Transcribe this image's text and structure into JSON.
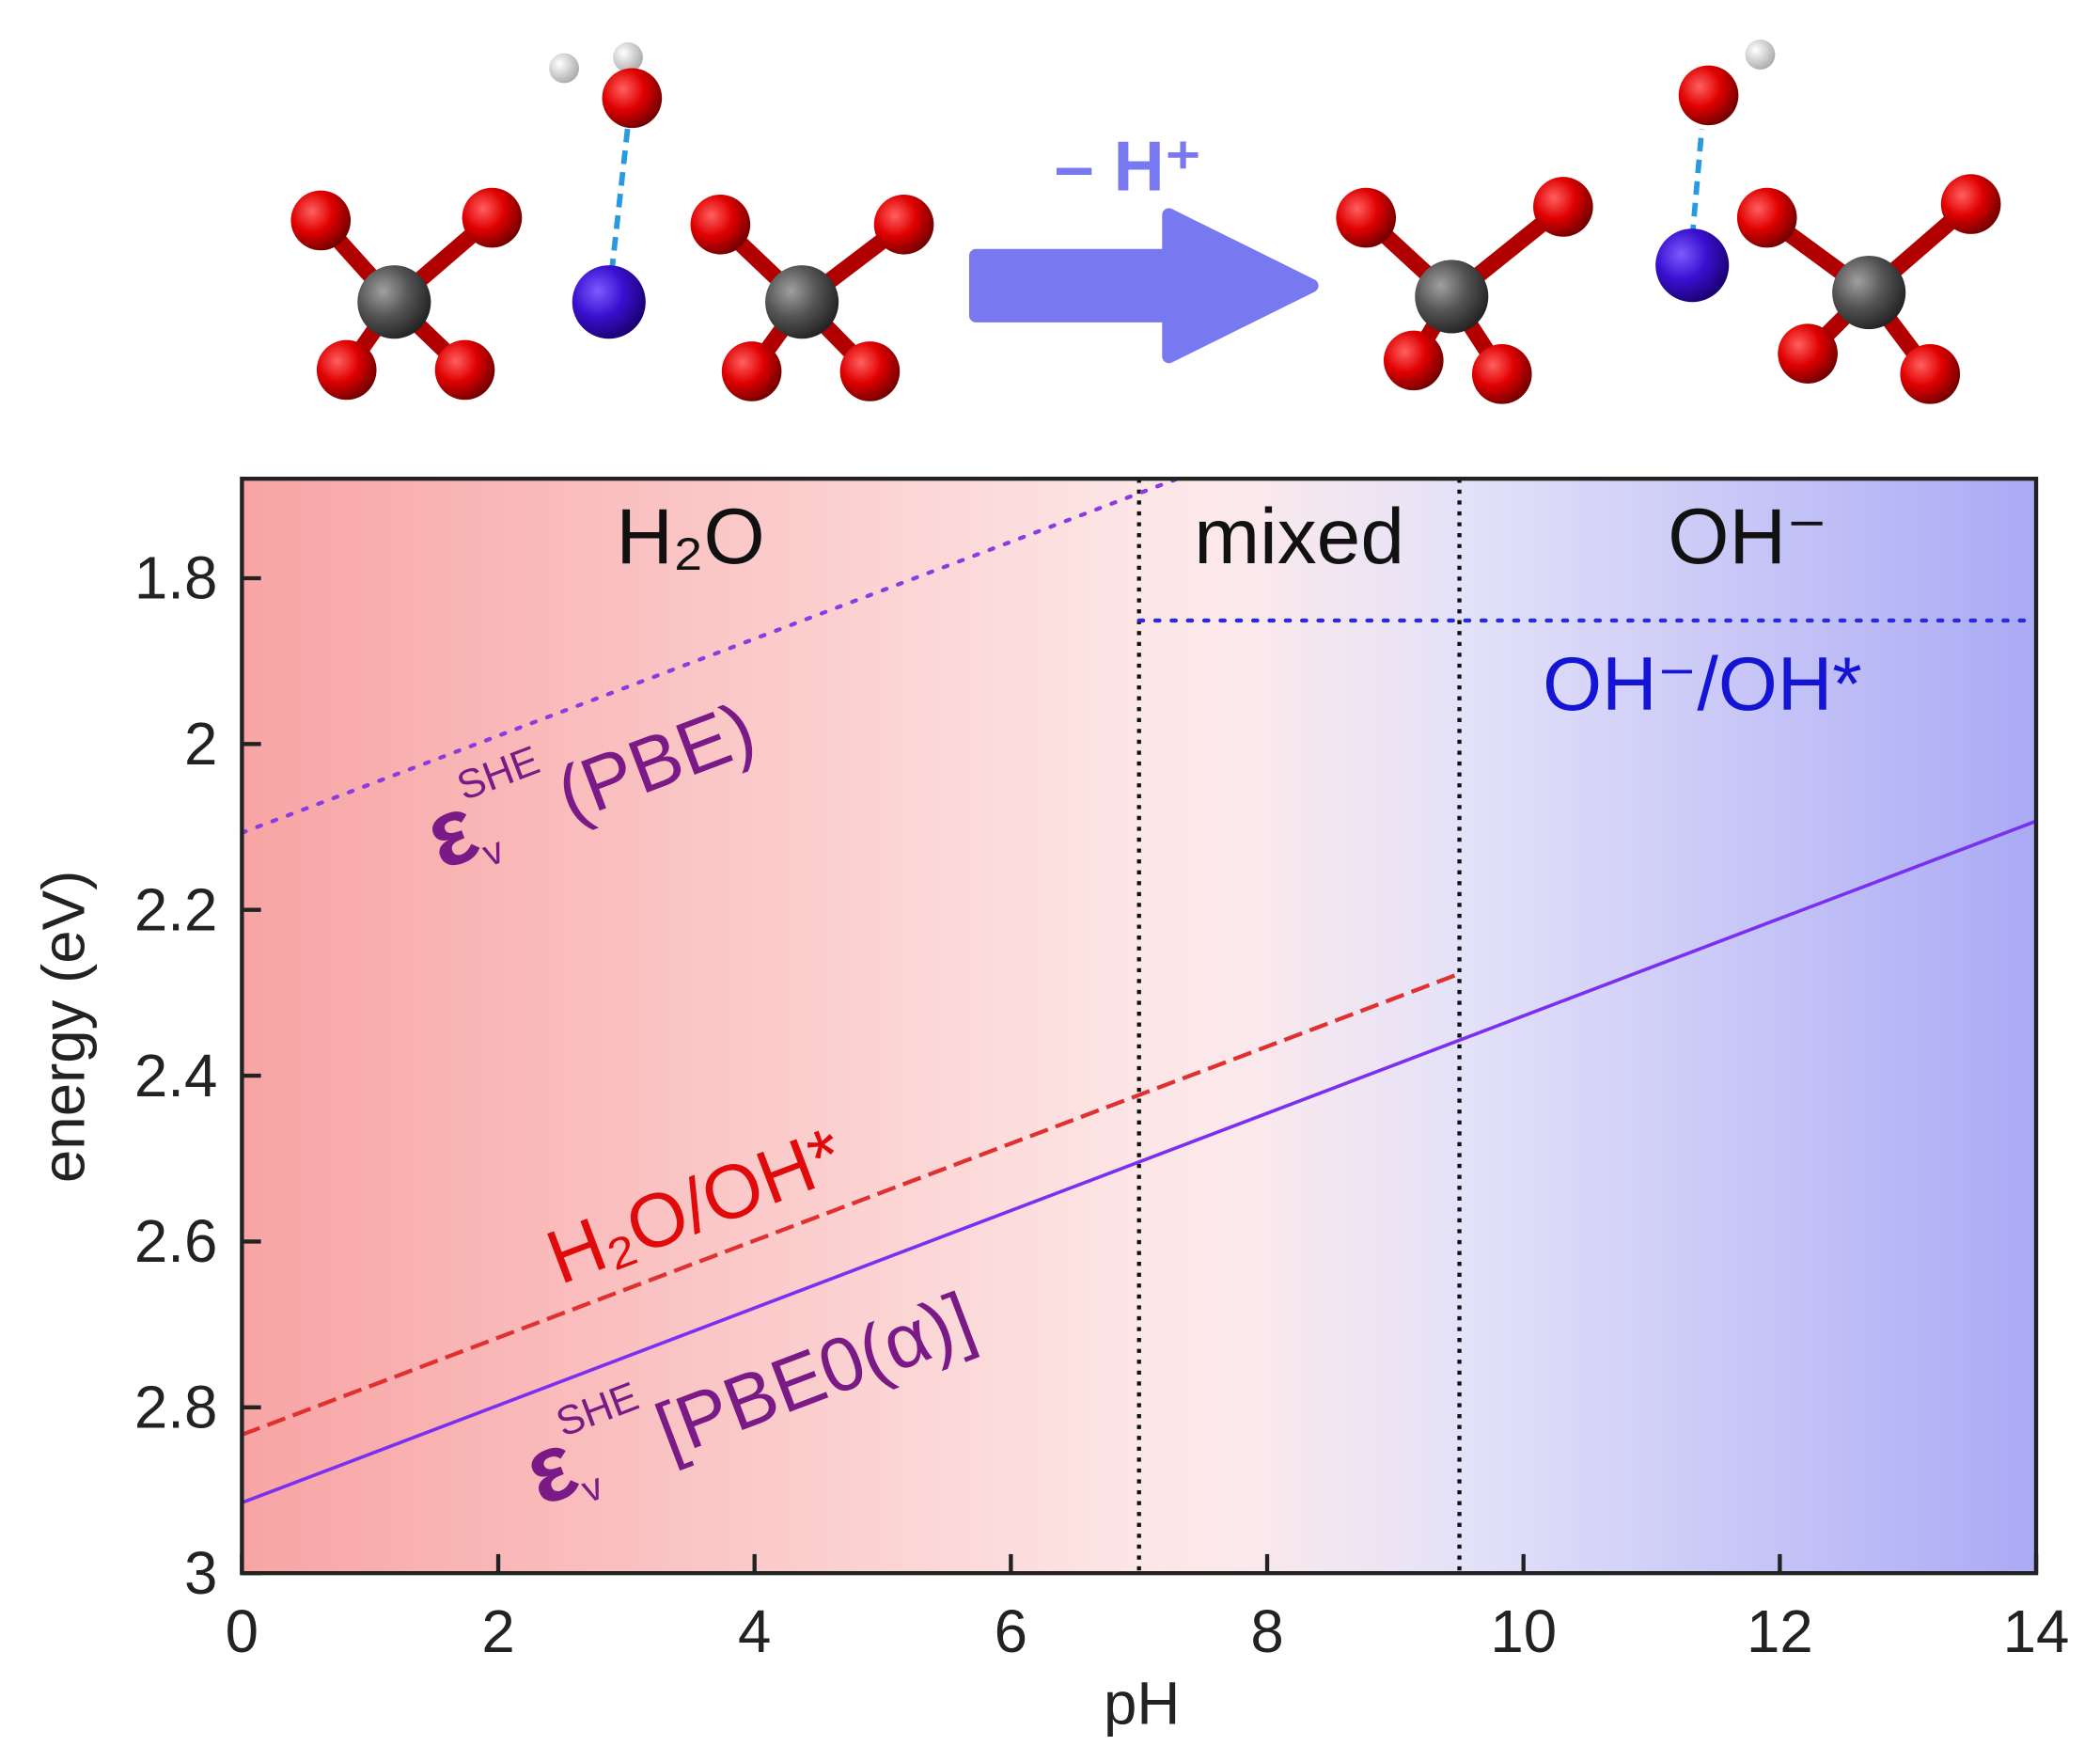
{
  "chart_data": {
    "type": "line",
    "x_label": "pH",
    "y_label": "energy (eV)",
    "xlim": [
      0,
      14
    ],
    "xticks": [
      0,
      2,
      4,
      6,
      8,
      10,
      12,
      14
    ],
    "ylim": [
      1.68,
      3
    ],
    "y_inverted": true,
    "yticks": [
      1.8,
      2,
      2.2,
      2.4,
      2.6,
      2.8,
      3
    ],
    "vlines": [
      7,
      9.5
    ],
    "regions": [
      {
        "label": "H₂O",
        "x": [
          0,
          7
        ]
      },
      {
        "label": "mixed",
        "x": [
          7,
          9.5
        ]
      },
      {
        "label": "OH⁻",
        "x": [
          9.5,
          14
        ]
      }
    ],
    "series": [
      {
        "label": {
          "symbol": "ε",
          "sub": "v",
          "sup": "SHE",
          "text": "(PBE)"
        },
        "color": "#8a3ce0",
        "label_color": "#7a1a86",
        "style": "dotted",
        "x": [
          0,
          7.3
        ],
        "values": [
          2.107,
          1.68
        ]
      },
      {
        "name": "H₂O/OH*",
        "color": "#e03030",
        "label_color": "#e00a0a",
        "style": "dashed",
        "x": [
          0,
          9.5
        ],
        "values": [
          2.833,
          2.277
        ]
      },
      {
        "label": {
          "symbol": "ε",
          "sub": "v",
          "sup": "SHE",
          "text": "[PBE0(α)]"
        },
        "color": "#7b2ff0",
        "label_color": "#7a1a86",
        "style": "solid",
        "x": [
          0,
          14
        ],
        "values": [
          2.915,
          2.093
        ]
      },
      {
        "name": "OH⁻/OH*",
        "color": "#2a2ad8",
        "label_color": "#1414d4",
        "style": "dotted",
        "x": [
          7,
          14
        ],
        "values": [
          1.851,
          1.851
        ]
      }
    ],
    "reaction_label": "– H⁺"
  }
}
